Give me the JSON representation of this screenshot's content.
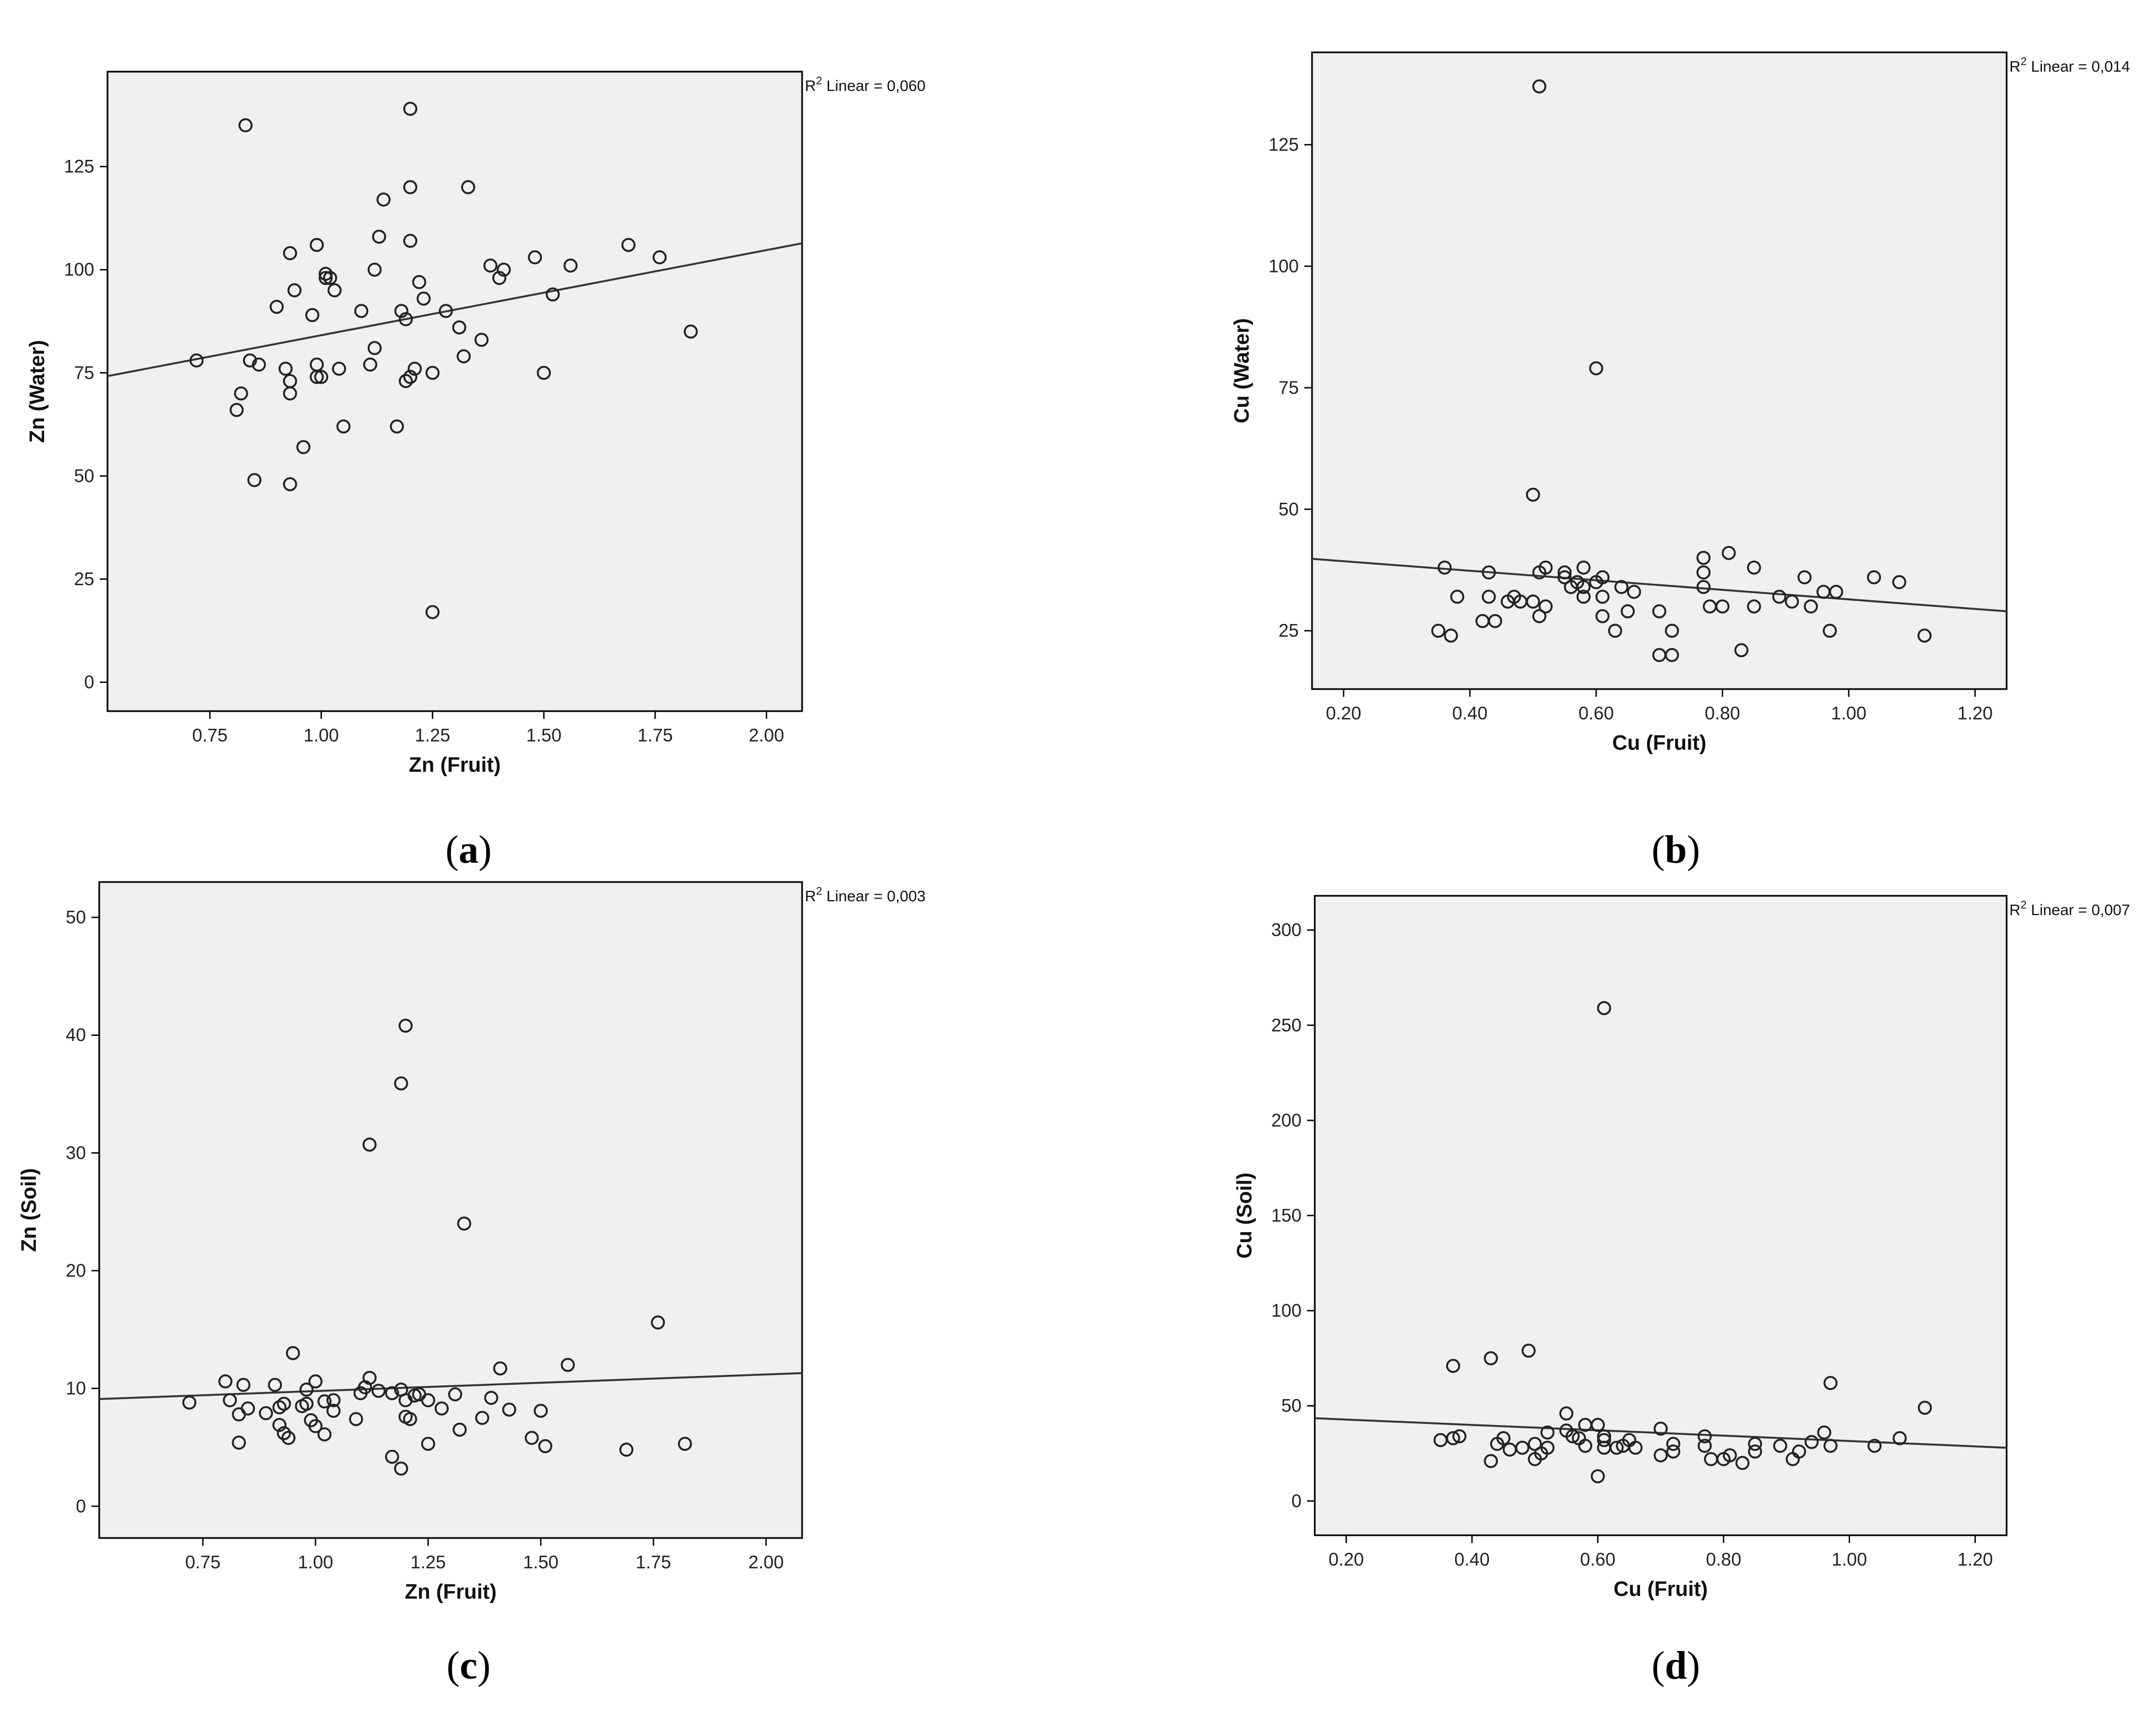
{
  "chart_data": [
    {
      "id": "a",
      "type": "scatter",
      "caption": "a",
      "xlabel": "Zn (Fruit)",
      "ylabel": "Zn (Water)",
      "r2_label": "Linear = 0,060",
      "xlim": [
        0.52,
        2.08
      ],
      "ylim": [
        -7,
        148
      ],
      "xticks": [
        0.75,
        1.0,
        1.25,
        1.5,
        1.75,
        2.0
      ],
      "xtick_labels": [
        "0.75",
        "1.00",
        "1.25",
        "1.50",
        "1.75",
        "2.00"
      ],
      "yticks": [
        0,
        25,
        50,
        75,
        100,
        125
      ],
      "ytick_labels": [
        "0",
        "25",
        "50",
        "75",
        "100",
        "125"
      ],
      "fit_line": {
        "x": [
          0.52,
          2.08
        ],
        "y": [
          74.2,
          106.4
        ]
      },
      "points": [
        [
          0.72,
          78
        ],
        [
          0.81,
          66
        ],
        [
          0.82,
          70
        ],
        [
          0.83,
          135
        ],
        [
          0.84,
          78
        ],
        [
          0.85,
          49
        ],
        [
          0.86,
          77
        ],
        [
          0.9,
          91
        ],
        [
          0.92,
          76
        ],
        [
          0.93,
          48
        ],
        [
          0.93,
          70
        ],
        [
          0.93,
          73
        ],
        [
          0.93,
          104
        ],
        [
          0.94,
          95
        ],
        [
          0.96,
          57
        ],
        [
          0.98,
          89
        ],
        [
          0.99,
          74
        ],
        [
          0.99,
          77
        ],
        [
          0.99,
          106
        ],
        [
          1.0,
          74
        ],
        [
          1.01,
          98
        ],
        [
          1.01,
          99
        ],
        [
          1.02,
          98
        ],
        [
          1.03,
          95
        ],
        [
          1.04,
          76
        ],
        [
          1.05,
          62
        ],
        [
          1.09,
          90
        ],
        [
          1.11,
          77
        ],
        [
          1.12,
          81
        ],
        [
          1.12,
          100
        ],
        [
          1.13,
          108
        ],
        [
          1.14,
          117
        ],
        [
          1.17,
          62
        ],
        [
          1.18,
          90
        ],
        [
          1.19,
          73
        ],
        [
          1.19,
          88
        ],
        [
          1.2,
          74
        ],
        [
          1.2,
          107
        ],
        [
          1.2,
          120
        ],
        [
          1.2,
          139
        ],
        [
          1.21,
          76
        ],
        [
          1.22,
          97
        ],
        [
          1.23,
          93
        ],
        [
          1.25,
          17
        ],
        [
          1.25,
          75
        ],
        [
          1.28,
          90
        ],
        [
          1.31,
          86
        ],
        [
          1.32,
          79
        ],
        [
          1.33,
          120
        ],
        [
          1.36,
          83
        ],
        [
          1.38,
          101
        ],
        [
          1.4,
          98
        ],
        [
          1.41,
          100
        ],
        [
          1.48,
          103
        ],
        [
          1.5,
          75
        ],
        [
          1.52,
          94
        ],
        [
          1.56,
          101
        ],
        [
          1.69,
          106
        ],
        [
          1.76,
          103
        ],
        [
          1.83,
          85
        ]
      ]
    },
    {
      "id": "b",
      "type": "scatter",
      "caption": "b",
      "xlabel": "Cu (Fruit)",
      "ylabel": "Cu (Water)",
      "r2_label": "Linear = 0,014",
      "xlim": [
        0.15,
        1.25
      ],
      "ylim": [
        13,
        144
      ],
      "xticks": [
        0.2,
        0.4,
        0.6,
        0.8,
        1.0,
        1.2
      ],
      "xtick_labels": [
        "0.20",
        "0.40",
        "0.60",
        "0.80",
        "1.00",
        "1.20"
      ],
      "yticks": [
        25,
        50,
        75,
        100,
        125
      ],
      "ytick_labels": [
        "25",
        "50",
        "75",
        "100",
        "125"
      ],
      "fit_line": {
        "x": [
          0.15,
          1.25
        ],
        "y": [
          39.8,
          29.0
        ]
      },
      "points": [
        [
          0.35,
          25
        ],
        [
          0.36,
          38
        ],
        [
          0.37,
          24
        ],
        [
          0.38,
          32
        ],
        [
          0.42,
          27
        ],
        [
          0.43,
          37
        ],
        [
          0.43,
          32
        ],
        [
          0.44,
          27
        ],
        [
          0.46,
          31
        ],
        [
          0.47,
          32
        ],
        [
          0.48,
          31
        ],
        [
          0.5,
          53
        ],
        [
          0.5,
          31
        ],
        [
          0.51,
          137
        ],
        [
          0.51,
          37
        ],
        [
          0.51,
          28
        ],
        [
          0.52,
          38
        ],
        [
          0.52,
          30
        ],
        [
          0.55,
          37
        ],
        [
          0.55,
          36
        ],
        [
          0.56,
          34
        ],
        [
          0.57,
          35
        ],
        [
          0.58,
          32
        ],
        [
          0.58,
          34
        ],
        [
          0.58,
          38
        ],
        [
          0.6,
          79
        ],
        [
          0.6,
          35
        ],
        [
          0.61,
          36
        ],
        [
          0.61,
          32
        ],
        [
          0.61,
          28
        ],
        [
          0.63,
          25
        ],
        [
          0.64,
          34
        ],
        [
          0.65,
          29
        ],
        [
          0.66,
          33
        ],
        [
          0.7,
          20
        ],
        [
          0.7,
          29
        ],
        [
          0.72,
          20
        ],
        [
          0.72,
          25
        ],
        [
          0.77,
          40
        ],
        [
          0.77,
          37
        ],
        [
          0.77,
          34
        ],
        [
          0.78,
          30
        ],
        [
          0.8,
          30
        ],
        [
          0.81,
          41
        ],
        [
          0.83,
          21
        ],
        [
          0.85,
          30
        ],
        [
          0.85,
          38
        ],
        [
          0.89,
          32
        ],
        [
          0.91,
          31
        ],
        [
          0.93,
          36
        ],
        [
          0.94,
          30
        ],
        [
          0.96,
          33
        ],
        [
          0.97,
          25
        ],
        [
          0.98,
          33
        ],
        [
          1.04,
          36
        ],
        [
          1.08,
          35
        ],
        [
          1.12,
          24
        ]
      ]
    },
    {
      "id": "c",
      "type": "scatter",
      "caption": "c",
      "xlabel": "Zn (Fruit)",
      "ylabel": "Zn (Soil)",
      "r2_label": "Linear = 0,003",
      "xlim": [
        0.52,
        2.08
      ],
      "ylim": [
        -2.7,
        53
      ],
      "xticks": [
        0.75,
        1.0,
        1.25,
        1.5,
        1.75,
        2.0
      ],
      "xtick_labels": [
        "0.75",
        "1.00",
        "1.25",
        "1.50",
        "1.75",
        "2.00"
      ],
      "yticks": [
        0,
        10,
        20,
        30,
        40,
        50
      ],
      "ytick_labels": [
        "0",
        "10",
        "20",
        "30",
        "40",
        "50"
      ],
      "fit_line": {
        "x": [
          0.52,
          2.08
        ],
        "y": [
          9.1,
          11.3
        ]
      },
      "points": [
        [
          0.72,
          8.8
        ],
        [
          0.8,
          10.6
        ],
        [
          0.81,
          9.0
        ],
        [
          0.83,
          7.8
        ],
        [
          0.83,
          5.4
        ],
        [
          0.84,
          10.3
        ],
        [
          0.85,
          8.3
        ],
        [
          0.89,
          7.9
        ],
        [
          0.91,
          10.3
        ],
        [
          0.92,
          8.4
        ],
        [
          0.92,
          6.9
        ],
        [
          0.93,
          6.2
        ],
        [
          0.93,
          8.7
        ],
        [
          0.94,
          5.8
        ],
        [
          0.95,
          13.0
        ],
        [
          0.97,
          8.5
        ],
        [
          0.98,
          8.7
        ],
        [
          0.98,
          9.9
        ],
        [
          0.99,
          7.3
        ],
        [
          1.0,
          10.6
        ],
        [
          1.0,
          6.8
        ],
        [
          1.02,
          6.1
        ],
        [
          1.02,
          8.9
        ],
        [
          1.04,
          9.0
        ],
        [
          1.04,
          8.1
        ],
        [
          1.09,
          7.4
        ],
        [
          1.1,
          9.6
        ],
        [
          1.11,
          10.1
        ],
        [
          1.12,
          10.9
        ],
        [
          1.12,
          30.7
        ],
        [
          1.14,
          9.8
        ],
        [
          1.17,
          4.2
        ],
        [
          1.17,
          9.6
        ],
        [
          1.19,
          3.2
        ],
        [
          1.19,
          9.9
        ],
        [
          1.19,
          35.9
        ],
        [
          1.2,
          9.0
        ],
        [
          1.2,
          7.6
        ],
        [
          1.2,
          40.8
        ],
        [
          1.21,
          7.4
        ],
        [
          1.22,
          9.4
        ],
        [
          1.23,
          9.5
        ],
        [
          1.25,
          9.0
        ],
        [
          1.25,
          5.3
        ],
        [
          1.28,
          8.3
        ],
        [
          1.31,
          9.5
        ],
        [
          1.32,
          6.5
        ],
        [
          1.33,
          24.0
        ],
        [
          1.37,
          7.5
        ],
        [
          1.39,
          9.2
        ],
        [
          1.41,
          11.7
        ],
        [
          1.43,
          8.2
        ],
        [
          1.48,
          5.8
        ],
        [
          1.5,
          8.1
        ],
        [
          1.51,
          5.1
        ],
        [
          1.56,
          12.0
        ],
        [
          1.69,
          4.8
        ],
        [
          1.76,
          15.6
        ],
        [
          1.82,
          5.3
        ]
      ]
    },
    {
      "id": "d",
      "type": "scatter",
      "caption": "d",
      "xlabel": "Cu (Fruit)",
      "ylabel": "Cu (Soil)",
      "r2_label": "Linear = 0,007",
      "xlim": [
        0.15,
        1.25
      ],
      "ylim": [
        -18,
        318
      ],
      "xticks": [
        0.2,
        0.4,
        0.6,
        0.8,
        1.0,
        1.2
      ],
      "xtick_labels": [
        "0.20",
        "0.40",
        "0.60",
        "0.80",
        "1.00",
        "1.20"
      ],
      "yticks": [
        0,
        50,
        100,
        150,
        200,
        250,
        300
      ],
      "ytick_labels": [
        "0",
        "50",
        "100",
        "150",
        "200",
        "250",
        "300"
      ],
      "fit_line": {
        "x": [
          0.15,
          1.25
        ],
        "y": [
          43.5,
          28.0
        ]
      },
      "points": [
        [
          0.35,
          32
        ],
        [
          0.37,
          33
        ],
        [
          0.37,
          71
        ],
        [
          0.38,
          34
        ],
        [
          0.43,
          21
        ],
        [
          0.43,
          75
        ],
        [
          0.44,
          30
        ],
        [
          0.45,
          33
        ],
        [
          0.46,
          27
        ],
        [
          0.48,
          28
        ],
        [
          0.49,
          79
        ],
        [
          0.5,
          22
        ],
        [
          0.5,
          30
        ],
        [
          0.51,
          25
        ],
        [
          0.52,
          28
        ],
        [
          0.52,
          36
        ],
        [
          0.55,
          46
        ],
        [
          0.55,
          37
        ],
        [
          0.56,
          34
        ],
        [
          0.57,
          33
        ],
        [
          0.58,
          29
        ],
        [
          0.58,
          40
        ],
        [
          0.6,
          13
        ],
        [
          0.6,
          40
        ],
        [
          0.61,
          34
        ],
        [
          0.61,
          32
        ],
        [
          0.61,
          28
        ],
        [
          0.61,
          259
        ],
        [
          0.63,
          28
        ],
        [
          0.64,
          29
        ],
        [
          0.65,
          32
        ],
        [
          0.66,
          28
        ],
        [
          0.7,
          38
        ],
        [
          0.7,
          24
        ],
        [
          0.72,
          26
        ],
        [
          0.72,
          30
        ],
        [
          0.77,
          34
        ],
        [
          0.77,
          29
        ],
        [
          0.78,
          22
        ],
        [
          0.8,
          22
        ],
        [
          0.81,
          24
        ],
        [
          0.83,
          20
        ],
        [
          0.85,
          30
        ],
        [
          0.85,
          26
        ],
        [
          0.89,
          29
        ],
        [
          0.91,
          22
        ],
        [
          0.92,
          26
        ],
        [
          0.94,
          31
        ],
        [
          0.96,
          36
        ],
        [
          0.97,
          62
        ],
        [
          0.97,
          29
        ],
        [
          1.04,
          29
        ],
        [
          1.08,
          33
        ],
        [
          1.12,
          49
        ]
      ]
    }
  ]
}
